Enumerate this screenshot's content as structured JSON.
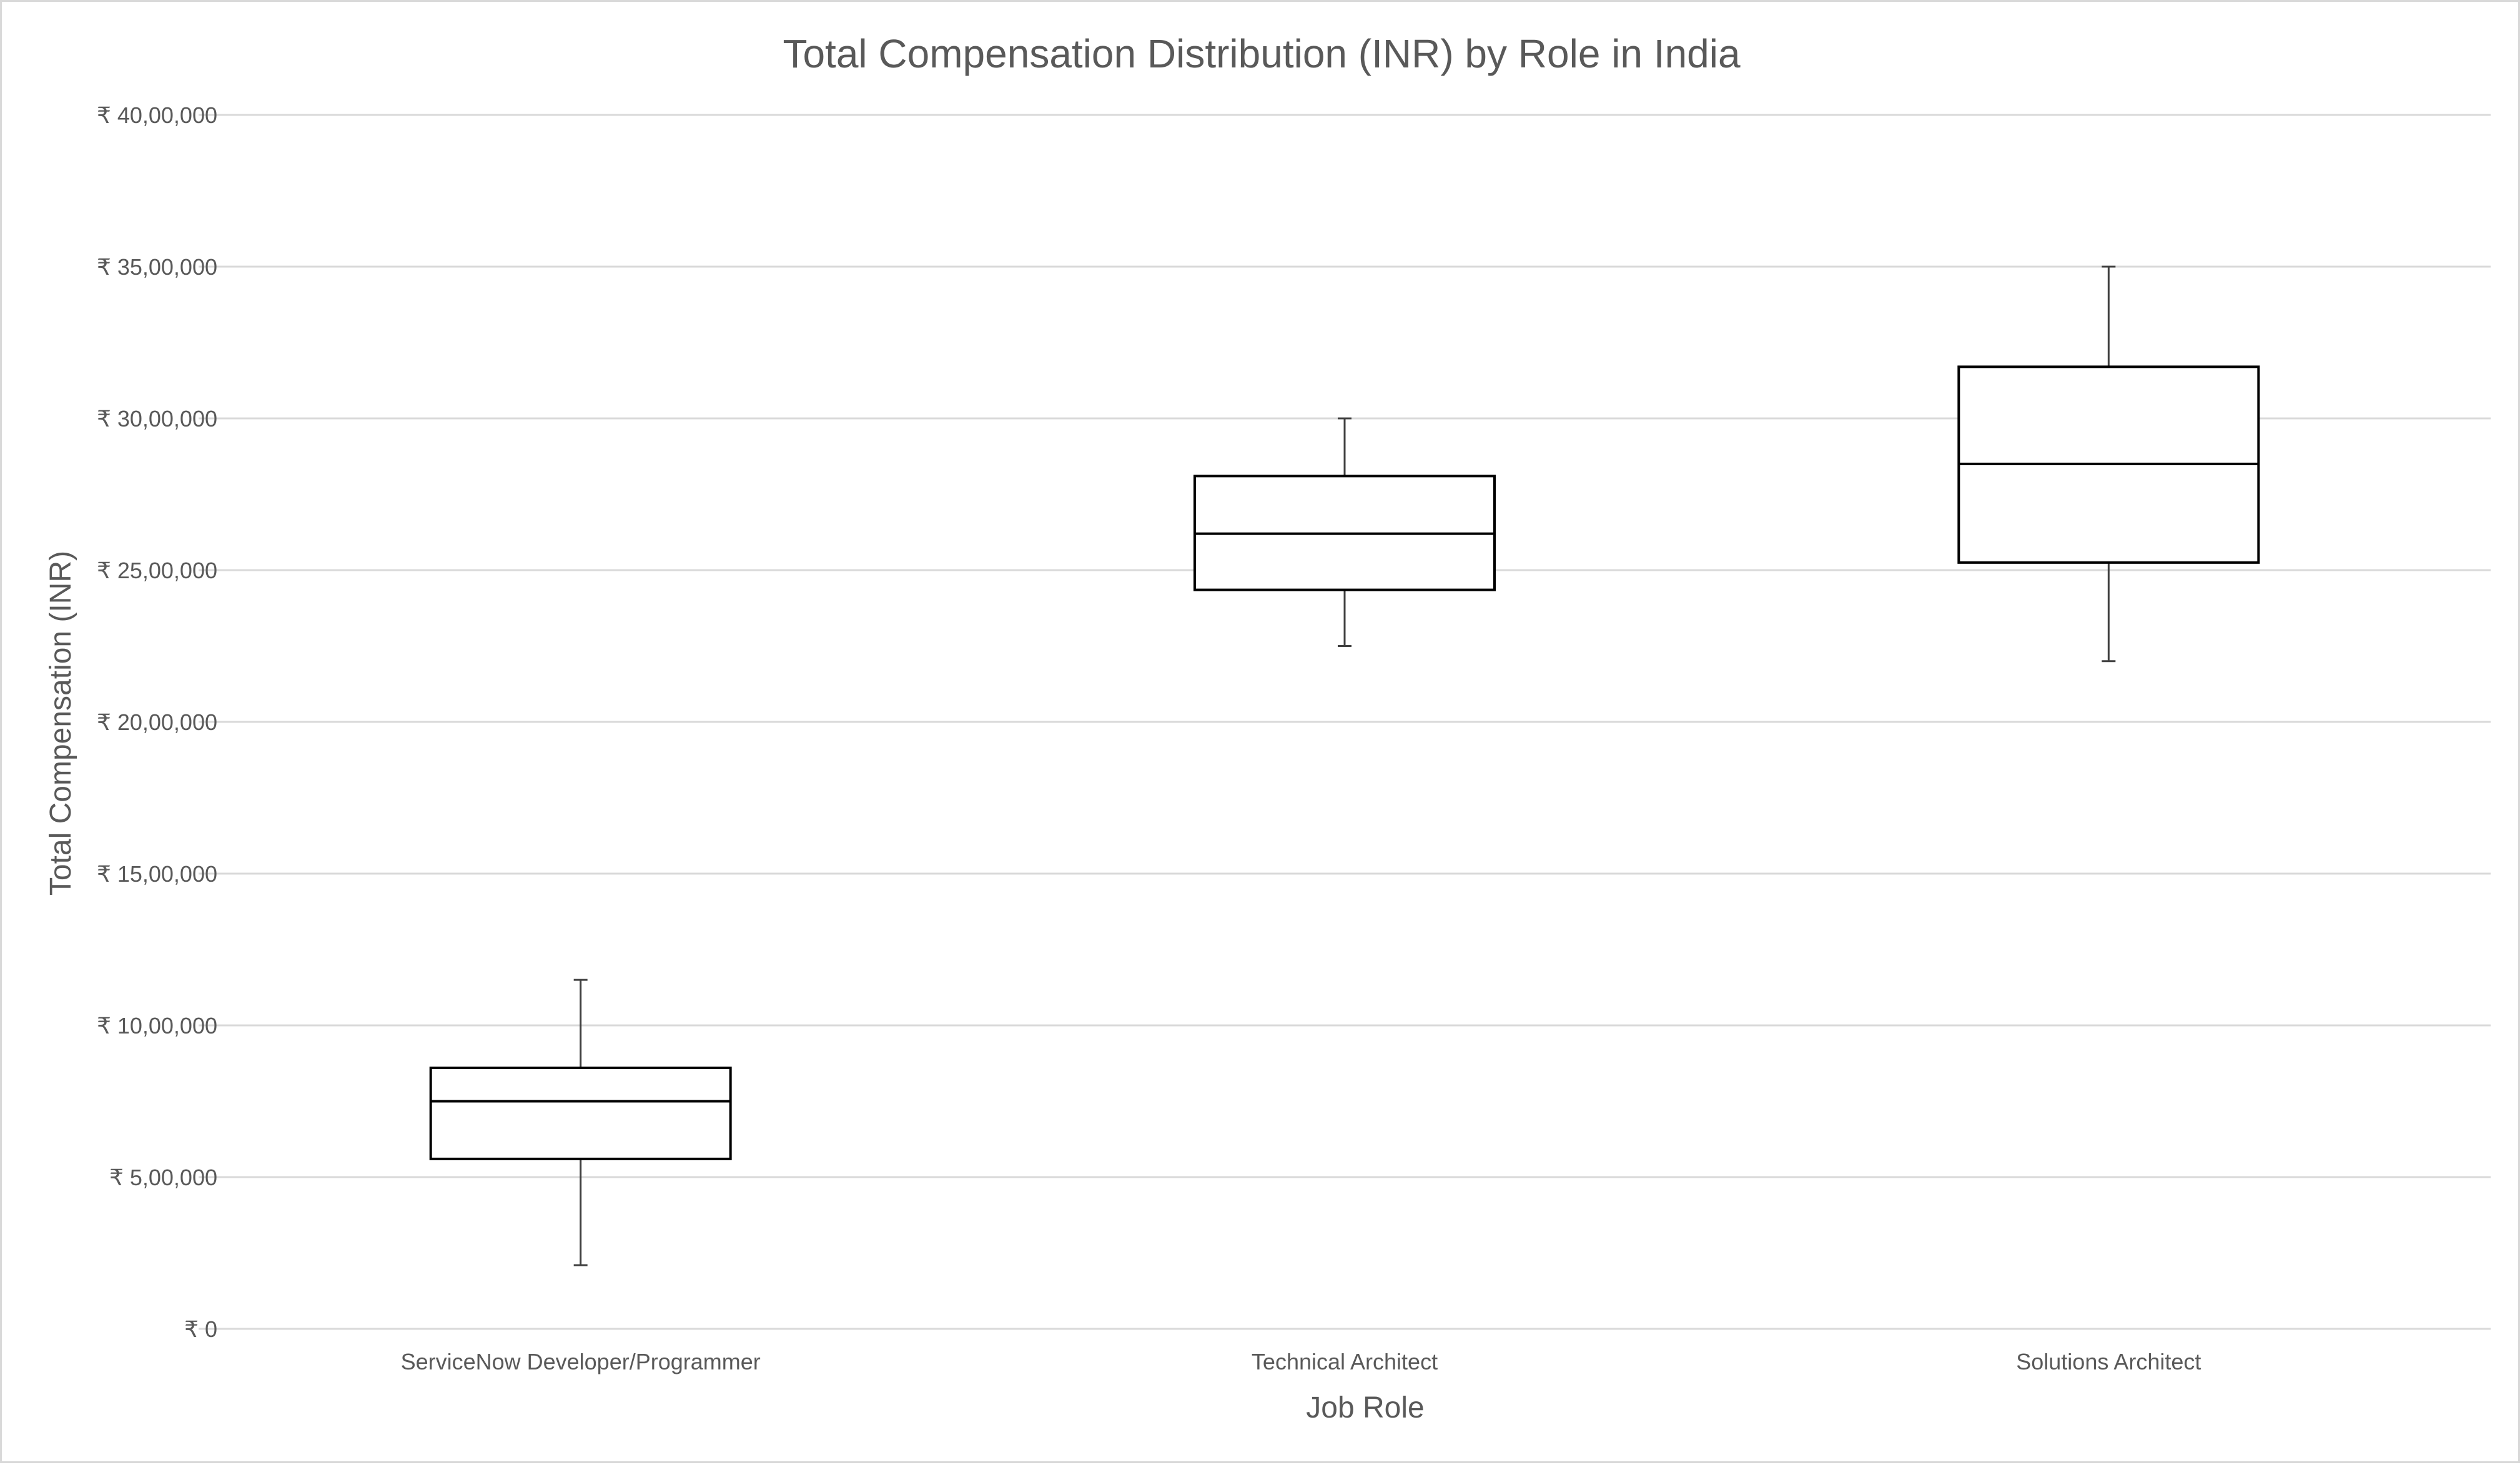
{
  "chart_data": {
    "type": "box",
    "title": "Total Compensation Distribution (INR) by Role in India",
    "xlabel": "Job Role",
    "ylabel": "Total Compensation (INR)",
    "ylim": [
      0,
      4000000
    ],
    "y_ticks": [
      0,
      500000,
      1000000,
      1500000,
      2000000,
      2500000,
      3000000,
      3500000,
      4000000
    ],
    "y_tick_labels": [
      "₹ 0",
      "₹ 5,00,000",
      "₹ 10,00,000",
      "₹ 15,00,000",
      "₹ 20,00,000",
      "₹ 25,00,000",
      "₹ 30,00,000",
      "₹ 35,00,000",
      "₹ 40,00,000"
    ],
    "grid": true,
    "categories": [
      "ServiceNow Developer/Programmer",
      "Technical Architect",
      "Solutions Architect"
    ],
    "boxes": [
      {
        "category": "ServiceNow Developer/Programmer",
        "min": 210000,
        "q1": 560000,
        "median": 750000,
        "q3": 860000,
        "max": 1150000
      },
      {
        "category": "Technical Architect",
        "min": 2250000,
        "q1": 2435000,
        "median": 2620000,
        "q3": 2810000,
        "max": 3000000
      },
      {
        "category": "Solutions Architect",
        "min": 2200000,
        "q1": 2525000,
        "median": 2850000,
        "q3": 3170000,
        "max": 3500000
      }
    ],
    "colors": {
      "box_stroke": "#000000",
      "box_fill": "#ffffff",
      "whisker": "#404040",
      "grid": "#d9d9d9",
      "text": "#595959"
    }
  }
}
